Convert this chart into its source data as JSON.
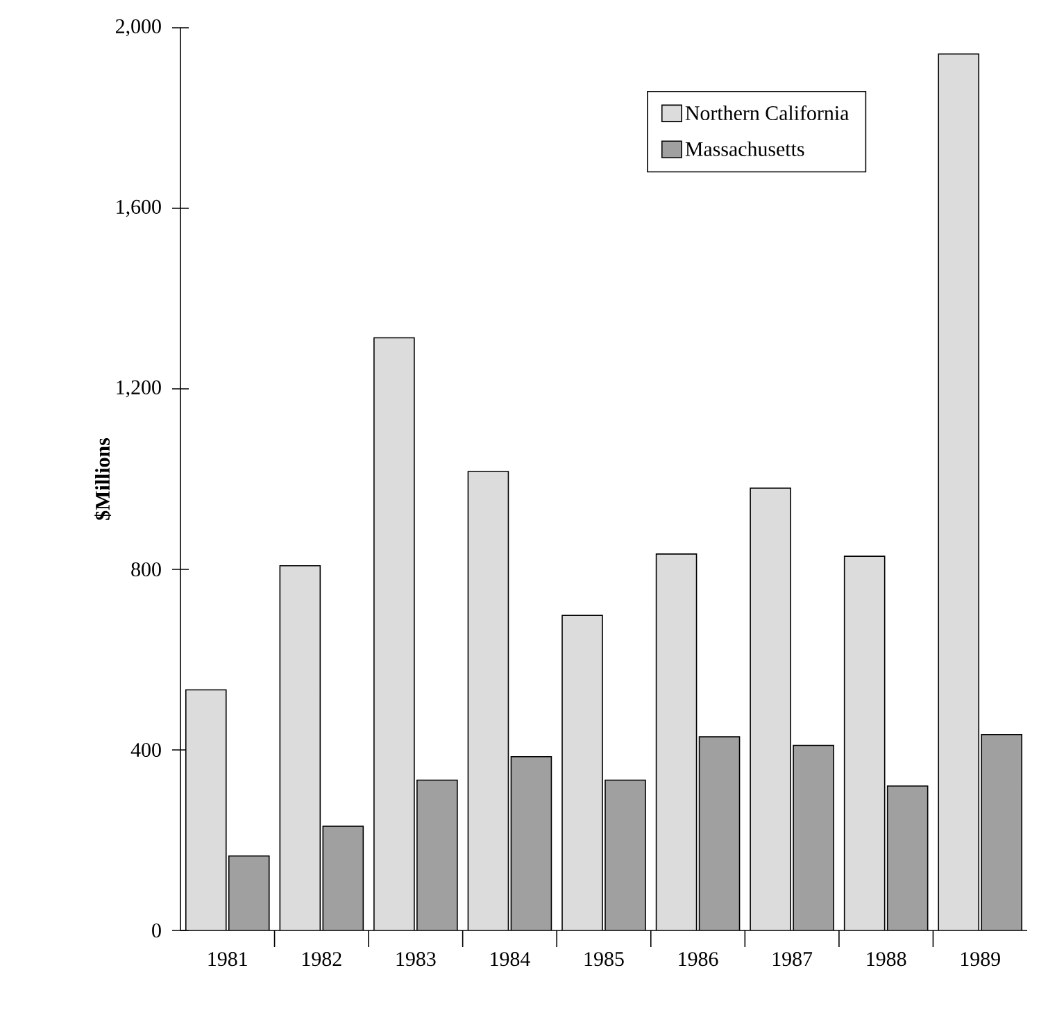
{
  "chart_data": {
    "type": "bar",
    "ylabel": "$Millions",
    "categories": [
      "1981",
      "1982",
      "1983",
      "1984",
      "1985",
      "1986",
      "1987",
      "1988",
      "1989"
    ],
    "series": [
      {
        "name": "Northern California",
        "color": "#dcdcdc",
        "values": [
          533,
          808,
          1313,
          1017,
          698,
          834,
          980,
          829,
          1942
        ]
      },
      {
        "name": "Massachusetts",
        "color": "#a0a0a0",
        "values": [
          165,
          231,
          333,
          385,
          333,
          429,
          410,
          320,
          434
        ]
      }
    ],
    "ylim": [
      0,
      2000
    ],
    "yticks": [
      {
        "value": 0,
        "label": "0"
      },
      {
        "value": 400,
        "label": "400"
      },
      {
        "value": 800,
        "label": "800"
      },
      {
        "value": 1200,
        "label": "1,200"
      },
      {
        "value": 1600,
        "label": "1,600"
      },
      {
        "value": 2000,
        "label": "2,000"
      }
    ],
    "grid": false,
    "legend": "top right"
  }
}
